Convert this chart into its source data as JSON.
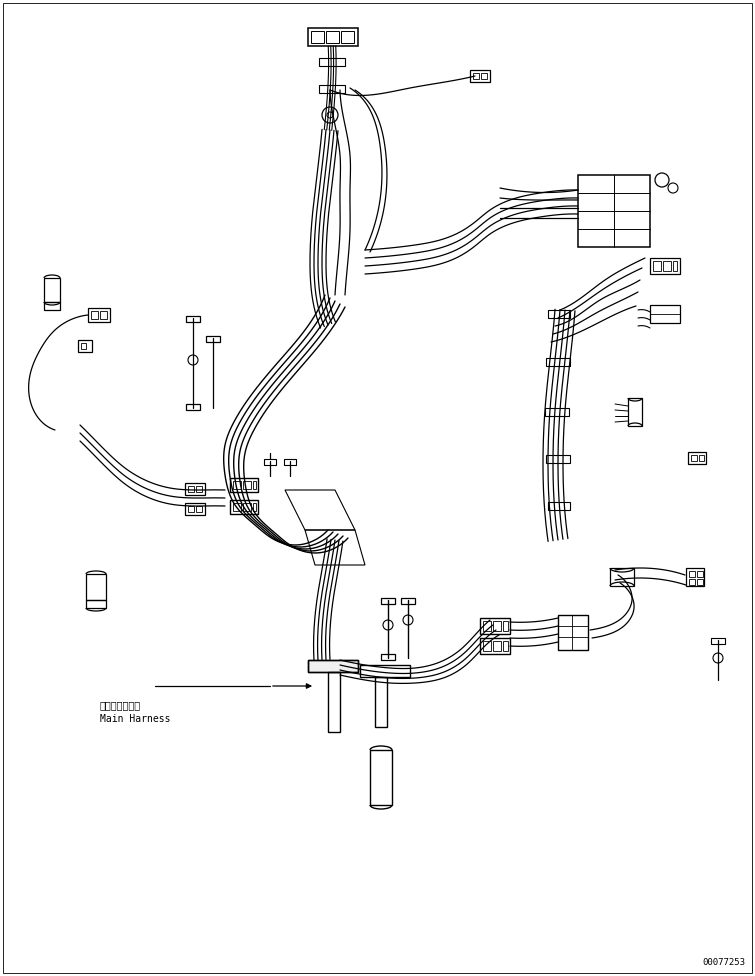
{
  "background_color": "#ffffff",
  "line_color": "#000000",
  "figure_width": 7.55,
  "figure_height": 9.76,
  "dpi": 100,
  "watermark_text": "00077253",
  "label_japanese": "メインハーネス",
  "label_english": "Main Harness",
  "label_fontsize": 7.0,
  "label_fontsize_jp": 7.0
}
